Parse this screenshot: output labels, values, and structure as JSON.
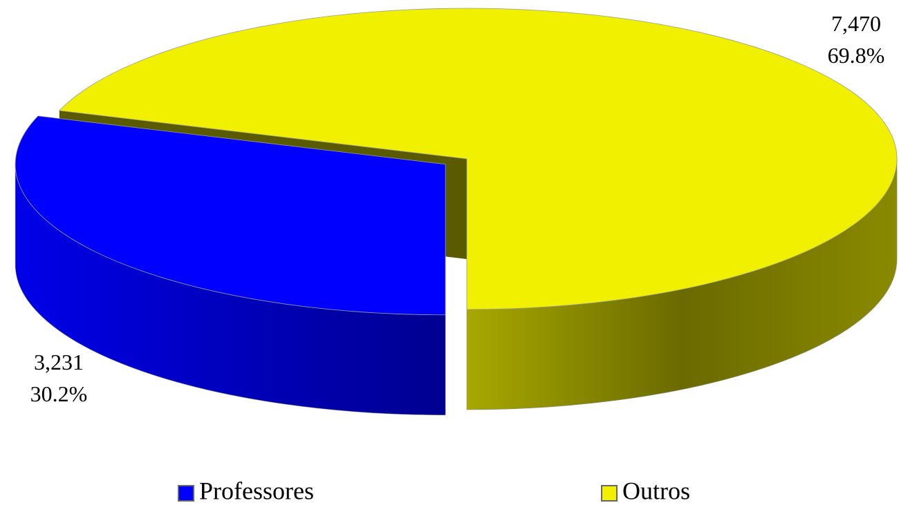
{
  "chart_data": {
    "type": "pie3d",
    "categories": [
      "Professores",
      "Outros"
    ],
    "values": [
      3231,
      7470
    ],
    "value_labels": [
      "3,231",
      "7,470"
    ],
    "percent_labels": [
      "30.2%",
      "69.8%"
    ],
    "colors": [
      "#0000ff",
      "#f0f000"
    ],
    "legend": "bottom"
  }
}
